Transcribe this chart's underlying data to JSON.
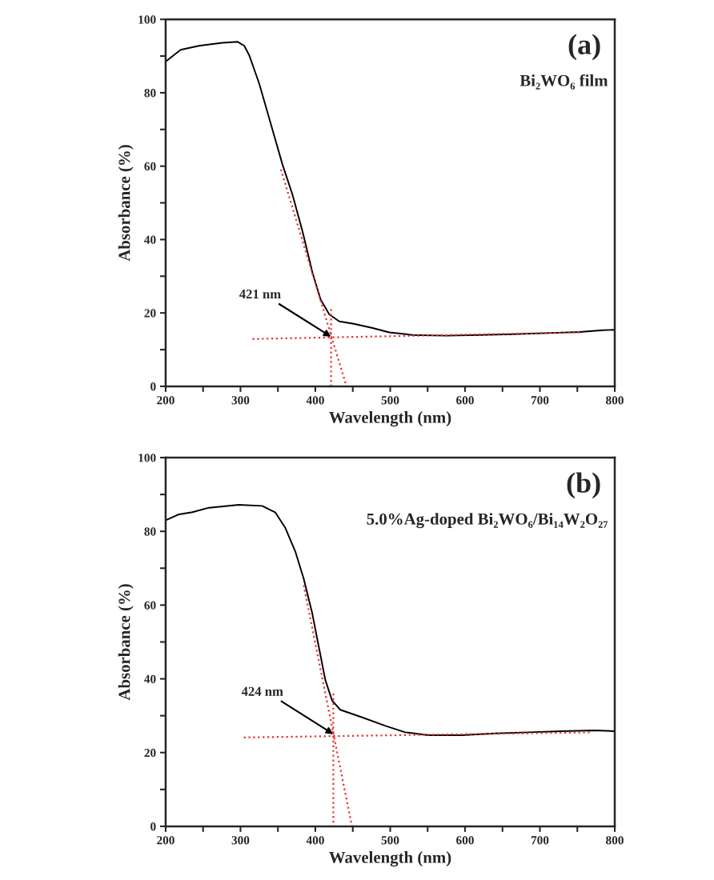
{
  "chart_data": [
    {
      "type": "line",
      "xlabel": "Wavelength (nm)",
      "ylabel": "Absorbance (%)",
      "annotations": [
        "(a)",
        "Bi₂WO₆ film",
        {
          "text": "421 nm",
          "x": 421,
          "y": 13.5
        }
      ],
      "xlim": [
        200,
        800
      ],
      "xticks": [
        200,
        {
          "value": 250,
          "label": null
        },
        300,
        {
          "value": 350,
          "label": null
        },
        400,
        {
          "value": 450,
          "label": null
        },
        500,
        {
          "value": 550,
          "label": null
        },
        600,
        {
          "value": 650,
          "label": null
        },
        700,
        {
          "value": 750,
          "label": null
        },
        800
      ],
      "ylim": [
        0,
        100
      ],
      "yticks": [
        0,
        {
          "value": 10,
          "label": null
        },
        20,
        {
          "value": 30,
          "label": null
        },
        40,
        {
          "value": 50,
          "label": null
        },
        60,
        {
          "value": 70,
          "label": null
        },
        80,
        {
          "value": 90,
          "label": null
        },
        100
      ],
      "grid": false,
      "legend": false,
      "series": [
        {
          "color": "#000000",
          "line_style": "solid",
          "x": [
            200,
            220,
            244.6,
            275.8,
            296,
            305,
            311.5,
            325,
            338,
            356,
            369.5,
            383,
            396,
            407,
            418.6,
            432,
            450,
            476.5,
            498.8,
            530,
            574.7,
            619,
            664,
            708.5,
            753,
            784,
            800
          ],
          "values": [
            88.5,
            91.7,
            92.8,
            93.6,
            93.9,
            92.8,
            90.3,
            82.5,
            73.3,
            60.5,
            52.2,
            42.1,
            31.1,
            23.7,
            19.6,
            17.7,
            17.1,
            15.9,
            14.7,
            14.0,
            13.8,
            14.0,
            14.2,
            14.5,
            14.8,
            15.3,
            15.4
          ]
        },
        {
          "color": "#e8302f",
          "line_style": "dotted",
          "x": [
            354,
            441.6
          ],
          "values": [
            59.1,
            0
          ]
        },
        {
          "color": "#e8302f",
          "line_style": "dotted",
          "x": [
            316,
            753
          ],
          "values": [
            12.9,
            14.7
          ]
        },
        {
          "color": "#e8302f",
          "line_style": "dotted",
          "x": [
            421,
            421
          ],
          "values": [
            21,
            0
          ]
        }
      ]
    },
    {
      "type": "line",
      "xlabel": "Wavelength (nm)",
      "ylabel": "Absorbance (%)",
      "annotations": [
        "(b)",
        "5.0%Ag-doped Bi₂WO₆/Bi₁₄W₂O₂₇",
        {
          "text": "424 nm",
          "x": 424,
          "y": 25
        }
      ],
      "xlim": [
        200,
        800
      ],
      "xticks": [
        200,
        {
          "value": 250,
          "label": null
        },
        300,
        {
          "value": 350,
          "label": null
        },
        400,
        {
          "value": 450,
          "label": null
        },
        500,
        {
          "value": 550,
          "label": null
        },
        600,
        {
          "value": 650,
          "label": null
        },
        700,
        {
          "value": 750,
          "label": null
        },
        800
      ],
      "ylim": [
        0,
        100
      ],
      "yticks": [
        0,
        {
          "value": 10,
          "label": null
        },
        20,
        {
          "value": 30,
          "label": null
        },
        40,
        {
          "value": 50,
          "label": null
        },
        60,
        {
          "value": 70,
          "label": null
        },
        80,
        {
          "value": 90,
          "label": null
        },
        100
      ],
      "grid": false,
      "legend": false,
      "series": [
        {
          "color": "#000000",
          "line_style": "solid",
          "x": [
            200,
            217.8,
            235.5,
            257.8,
            297.8,
            328.9,
            346.7,
            360,
            373.3,
            384.4,
            395.6,
            404.4,
            413.3,
            422.2,
            433.3,
            462,
            493,
            520,
            551,
            595.6,
            640,
            684.4,
            728.9,
            773.3,
            800
          ],
          "values": [
            83.0,
            84.6,
            85.2,
            86.4,
            87.2,
            86.9,
            85.1,
            80.9,
            74.5,
            67.2,
            58.0,
            48.9,
            39.7,
            34.2,
            31.6,
            29.6,
            27.3,
            25.5,
            24.7,
            24.7,
            25.2,
            25.5,
            25.8,
            26.0,
            25.8
          ]
        },
        {
          "color": "#e8302f",
          "line_style": "dotted",
          "x": [
            384.4,
            448.9
          ],
          "values": [
            65.4,
            0
          ]
        },
        {
          "color": "#e8302f",
          "line_style": "dotted",
          "x": [
            304.4,
            768.9
          ],
          "values": [
            24.1,
            25.5
          ]
        },
        {
          "color": "#e8302f",
          "line_style": "dotted",
          "x": [
            424,
            424
          ],
          "values": [
            36,
            0
          ]
        }
      ]
    }
  ]
}
